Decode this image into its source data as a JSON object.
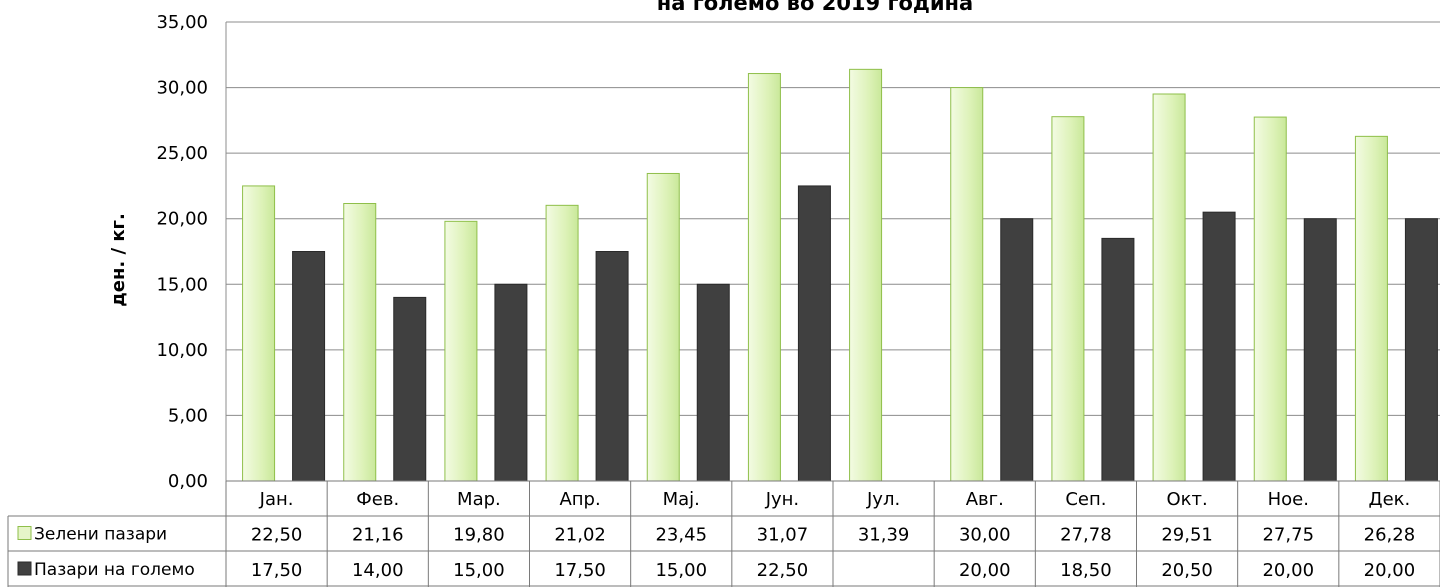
{
  "chart_data": {
    "type": "bar",
    "title": "на големо во 2019 година",
    "ylabel": "ден. / кг.",
    "xlabel": "",
    "ylim": [
      0,
      35
    ],
    "yticks": [
      "0,00",
      "5,00",
      "10,00",
      "15,00",
      "20,00",
      "25,00",
      "30,00",
      "35,00"
    ],
    "grid": true,
    "legend": "data-table",
    "categories": [
      "Јан.",
      "Фев.",
      "Мар.",
      "Апр.",
      "Мај.",
      "Јун.",
      "Јул.",
      "Авг.",
      "Сеп.",
      "Окт.",
      "Ное.",
      "Дек."
    ],
    "series": [
      {
        "name": "Зелени пазари",
        "color": "#e6f5c8",
        "stroke": "#8fbf4a",
        "values": [
          22.5,
          21.16,
          19.8,
          21.02,
          23.45,
          31.07,
          31.39,
          30.0,
          27.78,
          29.51,
          27.75,
          26.28
        ],
        "labels": [
          "22,50",
          "21,16",
          "19,80",
          "21,02",
          "23,45",
          "31,07",
          "31,39",
          "30,00",
          "27,78",
          "29,51",
          "27,75",
          "26,28"
        ]
      },
      {
        "name": "Пазари на големо",
        "color": "#404040",
        "stroke": "#2a2a2a",
        "values": [
          17.5,
          14.0,
          15.0,
          17.5,
          15.0,
          22.5,
          null,
          20.0,
          18.5,
          20.5,
          20.0,
          20.0
        ],
        "labels": [
          "17,50",
          "14,00",
          "15,00",
          "17,50",
          "15,00",
          "22,50",
          "",
          "20,00",
          "18,50",
          "20,50",
          "20,00",
          "20,00"
        ]
      }
    ]
  }
}
